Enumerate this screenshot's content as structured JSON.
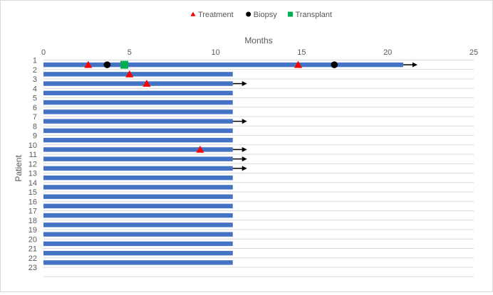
{
  "chart_data": {
    "type": "swimmer",
    "title": "",
    "xlabel": "Months",
    "ylabel": "Patient",
    "xlim": [
      0,
      25
    ],
    "xticks": [
      0,
      5,
      10,
      15,
      20,
      25
    ],
    "grid": "horizontal",
    "legend_position": "top",
    "legend": [
      {
        "name": "Treatment",
        "marker": "triangle",
        "color": "#ff0000"
      },
      {
        "name": "Biopsy",
        "marker": "circle",
        "color": "#000000"
      },
      {
        "name": "Transplant",
        "marker": "square",
        "color": "#00b050"
      }
    ],
    "bar_color": "#4472c4",
    "patients": [
      {
        "label": "1",
        "duration": 20.9,
        "ongoing": true,
        "treatment": [
          2.6,
          14.8
        ],
        "biopsy": [
          3.7,
          16.9
        ],
        "transplant": [
          4.7
        ]
      },
      {
        "label": "2",
        "duration": 11.0,
        "ongoing": false,
        "treatment": [
          5.0
        ],
        "biopsy": [],
        "transplant": []
      },
      {
        "label": "3",
        "duration": 11.0,
        "ongoing": true,
        "treatment": [
          6.0
        ],
        "biopsy": [],
        "transplant": []
      },
      {
        "label": "4",
        "duration": 11.0,
        "ongoing": false,
        "treatment": [],
        "biopsy": [],
        "transplant": []
      },
      {
        "label": "5",
        "duration": 11.0,
        "ongoing": false,
        "treatment": [],
        "biopsy": [],
        "transplant": []
      },
      {
        "label": "6",
        "duration": 11.0,
        "ongoing": false,
        "treatment": [],
        "biopsy": [],
        "transplant": []
      },
      {
        "label": "7",
        "duration": 11.0,
        "ongoing": true,
        "treatment": [],
        "biopsy": [],
        "transplant": []
      },
      {
        "label": "8",
        "duration": 11.0,
        "ongoing": false,
        "treatment": [],
        "biopsy": [],
        "transplant": []
      },
      {
        "label": "9",
        "duration": 11.0,
        "ongoing": false,
        "treatment": [],
        "biopsy": [],
        "transplant": []
      },
      {
        "label": "10",
        "duration": 11.0,
        "ongoing": true,
        "treatment": [
          9.1
        ],
        "biopsy": [],
        "transplant": []
      },
      {
        "label": "11",
        "duration": 11.0,
        "ongoing": true,
        "treatment": [],
        "biopsy": [],
        "transplant": []
      },
      {
        "label": "12",
        "duration": 11.0,
        "ongoing": true,
        "treatment": [],
        "biopsy": [],
        "transplant": []
      },
      {
        "label": "13",
        "duration": 11.0,
        "ongoing": false,
        "treatment": [],
        "biopsy": [],
        "transplant": []
      },
      {
        "label": "14",
        "duration": 11.0,
        "ongoing": false,
        "treatment": [],
        "biopsy": [],
        "transplant": []
      },
      {
        "label": "15",
        "duration": 11.0,
        "ongoing": false,
        "treatment": [],
        "biopsy": [],
        "transplant": []
      },
      {
        "label": "16",
        "duration": 11.0,
        "ongoing": false,
        "treatment": [],
        "biopsy": [],
        "transplant": []
      },
      {
        "label": "17",
        "duration": 11.0,
        "ongoing": false,
        "treatment": [],
        "biopsy": [],
        "transplant": []
      },
      {
        "label": "18",
        "duration": 11.0,
        "ongoing": false,
        "treatment": [],
        "biopsy": [],
        "transplant": []
      },
      {
        "label": "19",
        "duration": 11.0,
        "ongoing": false,
        "treatment": [],
        "biopsy": [],
        "transplant": []
      },
      {
        "label": "20",
        "duration": 11.0,
        "ongoing": false,
        "treatment": [],
        "biopsy": [],
        "transplant": []
      },
      {
        "label": "21",
        "duration": 11.0,
        "ongoing": false,
        "treatment": [],
        "biopsy": [],
        "transplant": []
      },
      {
        "label": "22",
        "duration": 11.0,
        "ongoing": false,
        "treatment": [],
        "biopsy": [],
        "transplant": []
      },
      {
        "label": "23",
        "duration": 0,
        "ongoing": false,
        "treatment": [],
        "biopsy": [],
        "transplant": []
      }
    ]
  }
}
